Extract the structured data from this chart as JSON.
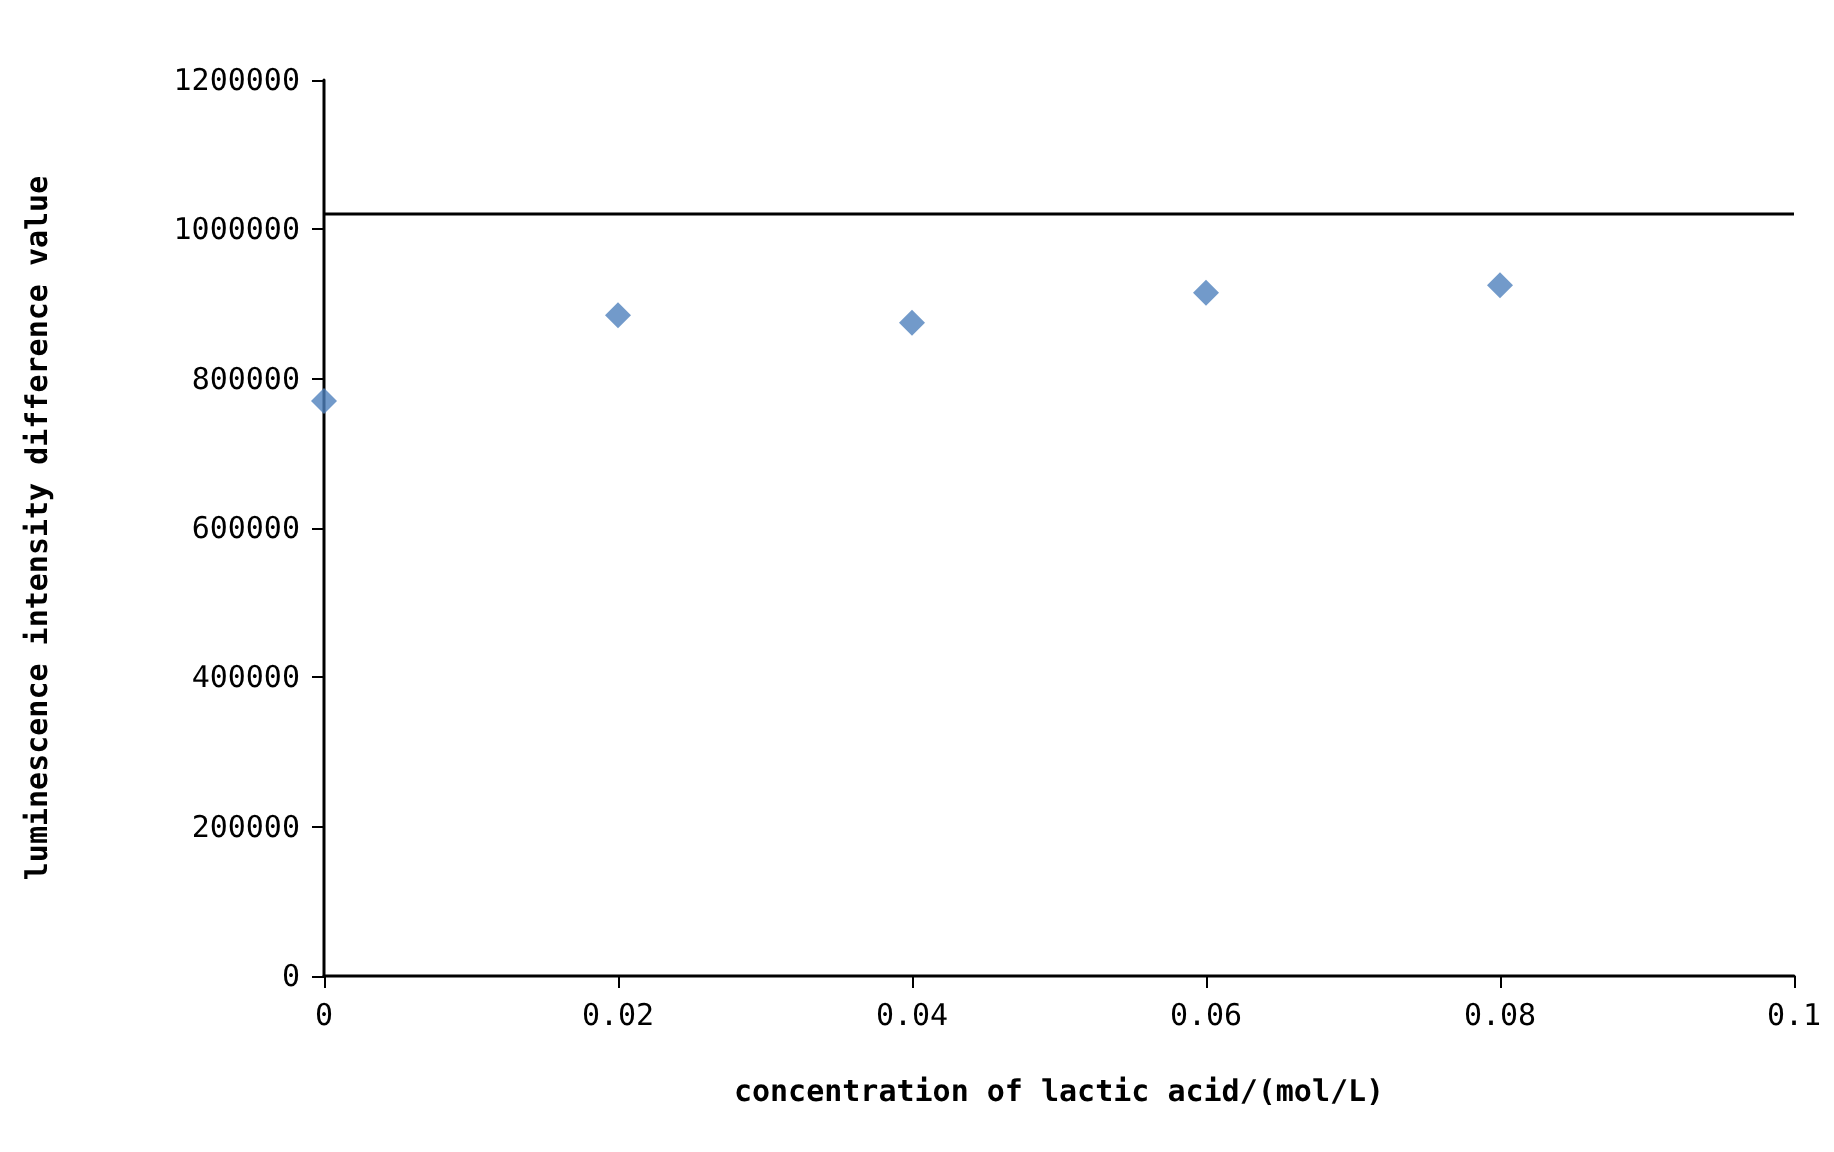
{
  "chart_data": {
    "type": "scatter",
    "xlabel": "concentration of lactic acid/(mol/L)",
    "ylabel": "luminescence intensity difference value",
    "x": [
      0,
      0.02,
      0.04,
      0.06,
      0.08
    ],
    "series": [
      {
        "color": "#4f81bd",
        "values": [
          770000,
          885000,
          875000,
          915000,
          925000
        ]
      }
    ],
    "xlim": [
      0,
      0.1
    ],
    "xticks": [
      0,
      {
        "value": 0.02,
        "label": "0.02"
      },
      {
        "value": 0.04,
        "label": "0.04"
      },
      {
        "value": 0.06,
        "label": "0.06"
      },
      {
        "value": 0.08,
        "label": "0.08"
      },
      0.1
    ],
    "ylim": [
      0,
      1200000
    ],
    "yticks": [
      0,
      200000,
      400000,
      600000,
      800000,
      1000000,
      1200000
    ],
    "ref_lines": [
      {
        "axis": "y",
        "value": 1020000,
        "color": "#000000",
        "line_style": "solid"
      }
    ],
    "marker": "diamond"
  }
}
